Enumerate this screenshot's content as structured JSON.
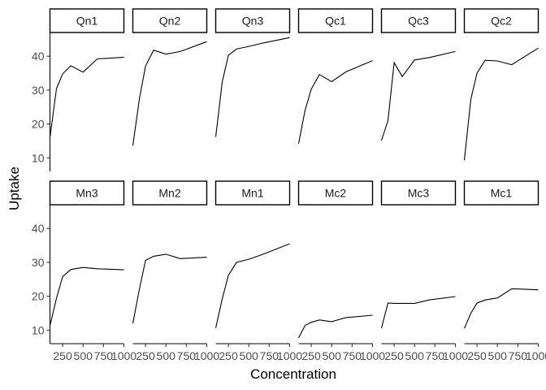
{
  "chart_data": {
    "type": "line",
    "xlabel": "Concentration",
    "ylabel": "Uptake",
    "xlim": [
      95,
      1000
    ],
    "ylim": [
      6,
      47
    ],
    "x_ticks": [
      250,
      500,
      750,
      1000
    ],
    "x_tick_labels": [
      "250",
      "500",
      "750",
      "1000"
    ],
    "y_ticks": [
      10,
      20,
      30,
      40
    ],
    "y_tick_labels": [
      "10",
      "20",
      "30",
      "40"
    ],
    "x": [
      95,
      175,
      250,
      350,
      500,
      675,
      1000
    ],
    "grid": false,
    "panels": [
      {
        "name": "Qn1",
        "values": [
          16.0,
          30.4,
          34.8,
          37.2,
          35.3,
          39.2,
          39.7
        ]
      },
      {
        "name": "Qn2",
        "values": [
          13.6,
          27.3,
          37.1,
          41.8,
          40.6,
          41.4,
          44.3
        ]
      },
      {
        "name": "Qn3",
        "values": [
          16.2,
          32.4,
          40.3,
          42.1,
          42.9,
          43.9,
          45.5
        ]
      },
      {
        "name": "Qc1",
        "values": [
          14.2,
          24.1,
          30.3,
          34.6,
          32.5,
          35.4,
          38.7
        ]
      },
      {
        "name": "Qc3",
        "values": [
          15.1,
          21.0,
          38.1,
          34.0,
          38.9,
          39.6,
          41.4
        ]
      },
      {
        "name": "Qc2",
        "values": [
          9.3,
          27.3,
          35.0,
          38.8,
          38.6,
          37.5,
          42.4
        ]
      },
      {
        "name": "Mn3",
        "values": [
          11.3,
          19.4,
          25.8,
          27.9,
          28.5,
          28.1,
          27.8
        ]
      },
      {
        "name": "Mn2",
        "values": [
          12.0,
          22.0,
          30.6,
          31.8,
          32.4,
          31.1,
          31.5
        ]
      },
      {
        "name": "Mn1",
        "values": [
          10.6,
          19.2,
          26.2,
          30.0,
          30.9,
          32.4,
          35.5
        ]
      },
      {
        "name": "Mc2",
        "values": [
          7.7,
          11.4,
          12.3,
          13.0,
          12.5,
          13.7,
          14.4
        ]
      },
      {
        "name": "Mc3",
        "values": [
          10.6,
          18.0,
          17.9,
          17.9,
          17.9,
          18.9,
          19.9
        ]
      },
      {
        "name": "Mc1",
        "values": [
          10.5,
          15.0,
          18.0,
          18.9,
          19.5,
          22.2,
          21.9
        ]
      }
    ]
  }
}
